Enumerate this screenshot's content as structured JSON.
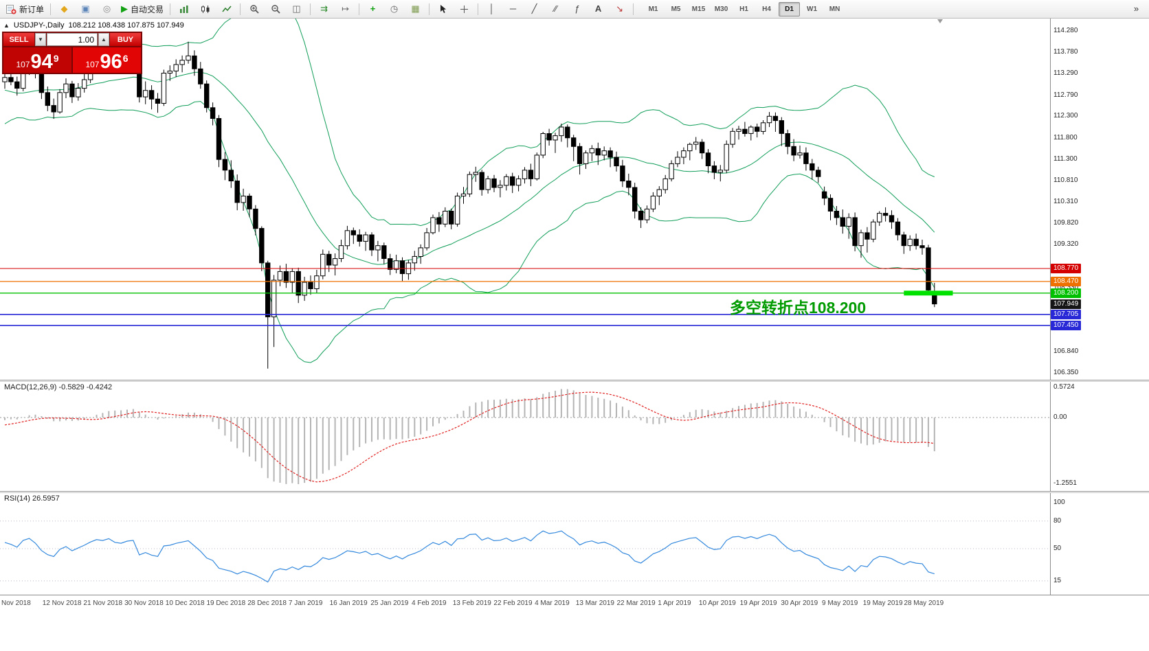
{
  "toolbar": {
    "items": [
      {
        "name": "new-order-button",
        "icon": "doc",
        "label": "新订单"
      },
      {
        "sep": true
      },
      {
        "name": "market-watch-icon",
        "icon": "diamond"
      },
      {
        "name": "data-window-icon",
        "icon": "window"
      },
      {
        "name": "navigator-icon",
        "icon": "info"
      },
      {
        "name": "auto-trading-button",
        "icon": "play",
        "label": "自动交易"
      },
      {
        "sep": true
      },
      {
        "name": "bar-chart-button",
        "icon": "bars"
      },
      {
        "name": "candlestick-chart-button",
        "icon": "candles"
      },
      {
        "name": "line-chart-button",
        "icon": "line"
      },
      {
        "sep": true
      },
      {
        "name": "zoom-in-button",
        "icon": "zin"
      },
      {
        "name": "zoom-out-button",
        "icon": "zout"
      },
      {
        "name": "tile-windows-button",
        "icon": "tile"
      },
      {
        "sep": true
      },
      {
        "name": "auto-scroll-button",
        "icon": "autoscroll"
      },
      {
        "name": "chart-shift-button",
        "icon": "shift"
      },
      {
        "sep": true
      },
      {
        "name": "indicators-button",
        "icon": "indicators"
      },
      {
        "name": "periods-button",
        "icon": "clock"
      },
      {
        "name": "templates-button",
        "icon": "template"
      },
      {
        "sep": true
      },
      {
        "name": "cursor-button",
        "icon": "cursor"
      },
      {
        "name": "crosshair-button",
        "icon": "cross"
      },
      {
        "sep": true
      },
      {
        "name": "vertical-line-button",
        "icon": "vline"
      },
      {
        "name": "horizontal-line-button",
        "icon": "hline"
      },
      {
        "name": "trendline-button",
        "icon": "trend"
      },
      {
        "name": "equidistant-channel-button",
        "icon": "channel"
      },
      {
        "name": "fibonacci-button",
        "icon": "fibo"
      },
      {
        "name": "text-button",
        "icon": "text"
      },
      {
        "name": "arrows-button",
        "icon": "arrow"
      },
      {
        "sep": true
      }
    ],
    "timeframes": {
      "items": [
        "M1",
        "M5",
        "M15",
        "M30",
        "H1",
        "H4",
        "D1",
        "W1",
        "MN"
      ],
      "active": "D1"
    },
    "overflow_glyph": "»"
  },
  "chart_header": {
    "collapse_glyph": "▲",
    "symbol_period": "USDJPY-,Daily",
    "ohlc": "108.212 108.438 107.875 107.949"
  },
  "trade_panel": {
    "sell_label": "SELL",
    "buy_label": "BUY",
    "volume": "1.00",
    "sell_price": {
      "prefix": "107",
      "main": "94",
      "sup": "9"
    },
    "buy_price": {
      "prefix": "107",
      "main": "96",
      "sup": "6"
    },
    "spin_down_glyph": "▼",
    "spin_up_glyph": "▲"
  },
  "price_scale": {
    "ticks": [
      "114.280",
      "113.780",
      "113.290",
      "112.790",
      "112.300",
      "111.800",
      "111.300",
      "110.810",
      "110.310",
      "109.820",
      "109.320",
      "108.330",
      "106.840",
      "106.350"
    ]
  },
  "macd_panel": {
    "name": "MACD(12,26,9)",
    "values": "-0.5829 -0.4242",
    "scale": [
      "0.5724",
      "0.00",
      "-1.2551"
    ]
  },
  "rsi_panel": {
    "name": "RSI(14)",
    "value": "26.5957",
    "scale": [
      "100",
      "80",
      "50",
      "15"
    ]
  },
  "date_axis": {
    "labels": [
      "Nov 2018",
      "12 Nov 2018",
      "21 Nov 2018",
      "30 Nov 2018",
      "10 Dec 2018",
      "19 Dec 2018",
      "28 Dec 2018",
      "7 Jan 2019",
      "16 Jan 2019",
      "25 Jan 2019",
      "4 Feb 2019",
      "13 Feb 2019",
      "22 Feb 2019",
      "4 Mar 2019",
      "13 Mar 2019",
      "22 Mar 2019",
      "1 Apr 2019",
      "10 Apr 2019",
      "19 Apr 2019",
      "30 Apr 2019",
      "9 May 2019",
      "19 May 2019",
      "28 May 2019"
    ]
  },
  "chart_data": {
    "type": "candlestick",
    "symbol": "USDJPY-",
    "timeframe": "Daily",
    "y_range": [
      106.35,
      114.28
    ],
    "last_ohlc": {
      "open": 108.212,
      "high": 108.438,
      "low": 107.875,
      "close": 107.949
    },
    "bollinger": {
      "period": 20,
      "deviation": 2,
      "color": "#0f9d58"
    },
    "macd": {
      "fast": 12,
      "slow": 26,
      "signal": 9,
      "histogram_color": "#b4b4b4",
      "signal_color": "#e02020",
      "last_values": [
        -0.5829,
        -0.4242
      ]
    },
    "rsi": {
      "period": 14,
      "color": "#3388dd",
      "last_value": 26.5957,
      "levels": [
        80,
        50,
        15
      ]
    },
    "levels": [
      {
        "price": 108.77,
        "color": "#d40000",
        "width": 1
      },
      {
        "price": 108.47,
        "color": "#ee7000",
        "width": 1.3
      },
      {
        "price": 108.2,
        "color": "#00c000",
        "width": 1.3
      },
      {
        "price": 107.705,
        "color": "#2828d7",
        "width": 1.6
      },
      {
        "price": 107.45,
        "color": "#2828d7",
        "width": 1.6
      }
    ],
    "current_price": {
      "price": 107.949,
      "color": "#151515"
    },
    "annotation": {
      "text": "多空转折点108.200",
      "color": "#009b00"
    },
    "highlight_segment": {
      "price": 108.2,
      "start_index": 147,
      "end_index": 155,
      "color": "#00e100"
    },
    "lead_in_closes": [
      112.85,
      113.05,
      113.25,
      113.45,
      113.65,
      113.9,
      114.1,
      114.3,
      114.45,
      114.3,
      114.1,
      113.85,
      113.6,
      113.35,
      113.05,
      112.8,
      112.55,
      112.35,
      112.5,
      112.7,
      112.9,
      112.6,
      112.35,
      112.5,
      112.7,
      112.95,
      113.15,
      112.95,
      113.1,
      113.0
    ],
    "candles": [
      [
        113.1,
        113.32,
        112.94,
        113.2
      ],
      [
        113.2,
        113.41,
        113.02,
        113.1
      ],
      [
        113.1,
        113.22,
        112.78,
        112.95
      ],
      [
        112.95,
        113.52,
        112.88,
        113.4
      ],
      [
        113.4,
        113.68,
        113.26,
        113.55
      ],
      [
        113.55,
        113.62,
        113.18,
        113.3
      ],
      [
        113.3,
        113.39,
        112.7,
        112.85
      ],
      [
        112.85,
        112.99,
        112.42,
        112.55
      ],
      [
        112.55,
        112.71,
        112.24,
        112.4
      ],
      [
        112.4,
        112.93,
        112.36,
        112.85
      ],
      [
        112.85,
        113.18,
        112.72,
        113.05
      ],
      [
        113.05,
        113.12,
        112.61,
        112.75
      ],
      [
        112.75,
        113.07,
        112.66,
        112.95
      ],
      [
        112.95,
        113.28,
        112.85,
        113.15
      ],
      [
        113.15,
        113.51,
        113.07,
        113.4
      ],
      [
        113.4,
        113.71,
        113.31,
        113.6
      ],
      [
        113.6,
        113.68,
        113.36,
        113.55
      ],
      [
        113.55,
        113.82,
        113.47,
        113.7
      ],
      [
        113.7,
        113.78,
        113.38,
        113.5
      ],
      [
        113.5,
        113.64,
        113.31,
        113.45
      ],
      [
        113.45,
        113.72,
        113.36,
        113.6
      ],
      [
        113.6,
        113.84,
        113.43,
        113.65
      ],
      [
        113.65,
        113.73,
        112.62,
        112.75
      ],
      [
        112.75,
        113.11,
        112.58,
        112.9
      ],
      [
        112.9,
        113.02,
        112.46,
        112.7
      ],
      [
        112.7,
        112.84,
        112.38,
        112.6
      ],
      [
        112.6,
        113.38,
        112.54,
        113.3
      ],
      [
        113.3,
        113.48,
        113.12,
        113.35
      ],
      [
        113.35,
        113.62,
        113.21,
        113.5
      ],
      [
        113.5,
        113.71,
        113.32,
        113.6
      ],
      [
        113.6,
        114.03,
        113.52,
        113.7
      ],
      [
        113.7,
        113.83,
        113.24,
        113.4
      ],
      [
        113.4,
        113.56,
        112.94,
        113.05
      ],
      [
        113.05,
        113.13,
        112.39,
        112.5
      ],
      [
        112.5,
        112.62,
        112.09,
        112.25
      ],
      [
        112.25,
        112.33,
        111.12,
        111.3
      ],
      [
        111.3,
        111.47,
        110.82,
        111.05
      ],
      [
        111.05,
        111.28,
        110.64,
        110.8
      ],
      [
        110.8,
        110.95,
        110.12,
        110.3
      ],
      [
        110.3,
        110.62,
        110.11,
        110.45
      ],
      [
        110.45,
        110.51,
        109.96,
        110.15
      ],
      [
        110.15,
        110.24,
        109.54,
        109.7
      ],
      [
        109.7,
        109.75,
        108.71,
        108.9
      ],
      [
        108.9,
        108.95,
        106.45,
        107.65
      ],
      [
        107.65,
        108.62,
        106.95,
        108.5
      ],
      [
        108.5,
        108.84,
        108.36,
        108.7
      ],
      [
        108.7,
        108.88,
        108.32,
        108.45
      ],
      [
        108.45,
        108.78,
        108.21,
        108.7
      ],
      [
        108.7,
        108.79,
        107.97,
        108.15
      ],
      [
        108.15,
        108.58,
        108.02,
        108.45
      ],
      [
        108.45,
        108.61,
        108.16,
        108.3
      ],
      [
        108.3,
        108.74,
        108.19,
        108.6
      ],
      [
        108.6,
        109.21,
        108.52,
        109.1
      ],
      [
        109.1,
        109.18,
        108.69,
        108.85
      ],
      [
        108.85,
        109.12,
        108.61,
        109.0
      ],
      [
        109.0,
        109.44,
        108.92,
        109.3
      ],
      [
        109.3,
        109.76,
        109.21,
        109.65
      ],
      [
        109.65,
        109.72,
        109.34,
        109.55
      ],
      [
        109.55,
        109.68,
        109.28,
        109.4
      ],
      [
        109.4,
        109.62,
        109.18,
        109.55
      ],
      [
        109.55,
        109.61,
        109.06,
        109.2
      ],
      [
        109.2,
        109.41,
        108.94,
        109.3
      ],
      [
        109.3,
        109.37,
        108.87,
        109.0
      ],
      [
        109.0,
        109.11,
        108.62,
        108.75
      ],
      [
        108.75,
        109.09,
        108.66,
        108.95
      ],
      [
        108.95,
        109.03,
        108.48,
        108.65
      ],
      [
        108.65,
        108.97,
        108.51,
        108.9
      ],
      [
        108.9,
        109.18,
        108.72,
        109.05
      ],
      [
        109.05,
        109.33,
        108.88,
        109.25
      ],
      [
        109.25,
        109.71,
        109.19,
        109.6
      ],
      [
        109.6,
        110.02,
        109.56,
        109.95
      ],
      [
        109.95,
        110.08,
        109.62,
        109.8
      ],
      [
        109.8,
        110.19,
        109.73,
        110.1
      ],
      [
        110.1,
        110.16,
        109.68,
        109.8
      ],
      [
        109.8,
        110.53,
        109.74,
        110.45
      ],
      [
        110.45,
        110.66,
        110.27,
        110.5
      ],
      [
        110.5,
        111.02,
        110.43,
        110.95
      ],
      [
        110.95,
        111.13,
        110.78,
        111.0
      ],
      [
        111.0,
        111.06,
        110.46,
        110.6
      ],
      [
        110.6,
        110.92,
        110.51,
        110.85
      ],
      [
        110.85,
        110.94,
        110.54,
        110.65
      ],
      [
        110.65,
        110.82,
        110.42,
        110.7
      ],
      [
        110.7,
        110.96,
        110.58,
        110.9
      ],
      [
        110.9,
        110.99,
        110.52,
        110.7
      ],
      [
        110.7,
        110.93,
        110.56,
        110.85
      ],
      [
        110.85,
        111.12,
        110.74,
        111.05
      ],
      [
        111.05,
        111.2,
        110.68,
        110.85
      ],
      [
        110.85,
        111.46,
        110.81,
        111.4
      ],
      [
        111.4,
        111.94,
        111.33,
        111.9
      ],
      [
        111.9,
        112.01,
        111.62,
        111.75
      ],
      [
        111.75,
        111.92,
        111.45,
        111.85
      ],
      [
        111.85,
        112.13,
        111.71,
        112.05
      ],
      [
        112.05,
        112.11,
        111.58,
        111.8
      ],
      [
        111.8,
        111.87,
        111.26,
        111.6
      ],
      [
        111.6,
        111.68,
        110.95,
        111.2
      ],
      [
        111.2,
        111.51,
        111.08,
        111.45
      ],
      [
        111.45,
        111.63,
        111.26,
        111.55
      ],
      [
        111.55,
        111.69,
        111.17,
        111.4
      ],
      [
        111.4,
        111.6,
        111.28,
        111.5
      ],
      [
        111.5,
        111.58,
        111.12,
        111.35
      ],
      [
        111.35,
        111.48,
        111.02,
        111.15
      ],
      [
        111.15,
        111.29,
        110.66,
        110.8
      ],
      [
        110.8,
        110.97,
        110.47,
        110.65
      ],
      [
        110.65,
        110.76,
        109.93,
        110.1
      ],
      [
        110.1,
        110.19,
        109.71,
        109.9
      ],
      [
        109.9,
        110.23,
        109.82,
        110.15
      ],
      [
        110.15,
        110.54,
        110.08,
        110.45
      ],
      [
        110.45,
        110.68,
        110.24,
        110.6
      ],
      [
        110.6,
        110.94,
        110.51,
        110.85
      ],
      [
        110.85,
        111.28,
        110.79,
        111.2
      ],
      [
        111.2,
        111.49,
        111.12,
        111.35
      ],
      [
        111.35,
        111.58,
        111.19,
        111.5
      ],
      [
        111.5,
        111.69,
        111.28,
        111.65
      ],
      [
        111.65,
        111.82,
        111.52,
        111.7
      ],
      [
        111.7,
        111.77,
        111.31,
        111.45
      ],
      [
        111.45,
        111.54,
        110.98,
        111.15
      ],
      [
        111.15,
        111.26,
        110.84,
        111.0
      ],
      [
        111.0,
        111.17,
        110.79,
        111.05
      ],
      [
        111.05,
        111.74,
        110.98,
        111.65
      ],
      [
        111.65,
        112.03,
        111.57,
        111.95
      ],
      [
        111.95,
        112.08,
        111.76,
        112.0
      ],
      [
        112.0,
        112.17,
        111.83,
        111.9
      ],
      [
        111.9,
        112.09,
        111.74,
        112.05
      ],
      [
        112.05,
        112.13,
        111.81,
        111.95
      ],
      [
        111.95,
        112.21,
        111.88,
        112.15
      ],
      [
        112.15,
        112.4,
        112.05,
        112.3
      ],
      [
        112.3,
        112.39,
        111.94,
        112.2
      ],
      [
        112.2,
        112.28,
        111.61,
        111.9
      ],
      [
        111.9,
        111.99,
        111.42,
        111.6
      ],
      [
        111.6,
        111.77,
        111.26,
        111.4
      ],
      [
        111.4,
        111.62,
        111.32,
        111.45
      ],
      [
        111.45,
        111.58,
        111.04,
        111.2
      ],
      [
        111.2,
        111.31,
        110.83,
        111.05
      ],
      [
        111.05,
        111.13,
        110.76,
        110.9
      ],
      [
        110.55,
        110.67,
        110.24,
        110.4
      ],
      [
        110.4,
        110.49,
        109.89,
        110.1
      ],
      [
        110.1,
        110.22,
        109.78,
        109.95
      ],
      [
        109.95,
        110.14,
        109.58,
        109.75
      ],
      [
        109.75,
        110.05,
        109.46,
        109.95
      ],
      [
        109.95,
        110.07,
        109.17,
        109.3
      ],
      [
        109.3,
        109.67,
        109.02,
        109.6
      ],
      [
        109.6,
        109.73,
        109.14,
        109.45
      ],
      [
        109.45,
        109.91,
        109.38,
        109.85
      ],
      [
        109.85,
        110.1,
        109.76,
        110.05
      ],
      [
        110.05,
        110.19,
        109.86,
        110.0
      ],
      [
        110.0,
        110.12,
        109.69,
        109.85
      ],
      [
        109.85,
        109.94,
        109.42,
        109.55
      ],
      [
        109.55,
        109.62,
        109.11,
        109.3
      ],
      [
        109.3,
        109.54,
        109.18,
        109.45
      ],
      [
        109.45,
        109.58,
        109.21,
        109.3
      ],
      [
        109.3,
        109.44,
        109.09,
        109.25
      ],
      [
        109.25,
        109.32,
        108.22,
        108.27
      ],
      [
        108.212,
        108.438,
        107.875,
        107.949
      ]
    ]
  }
}
